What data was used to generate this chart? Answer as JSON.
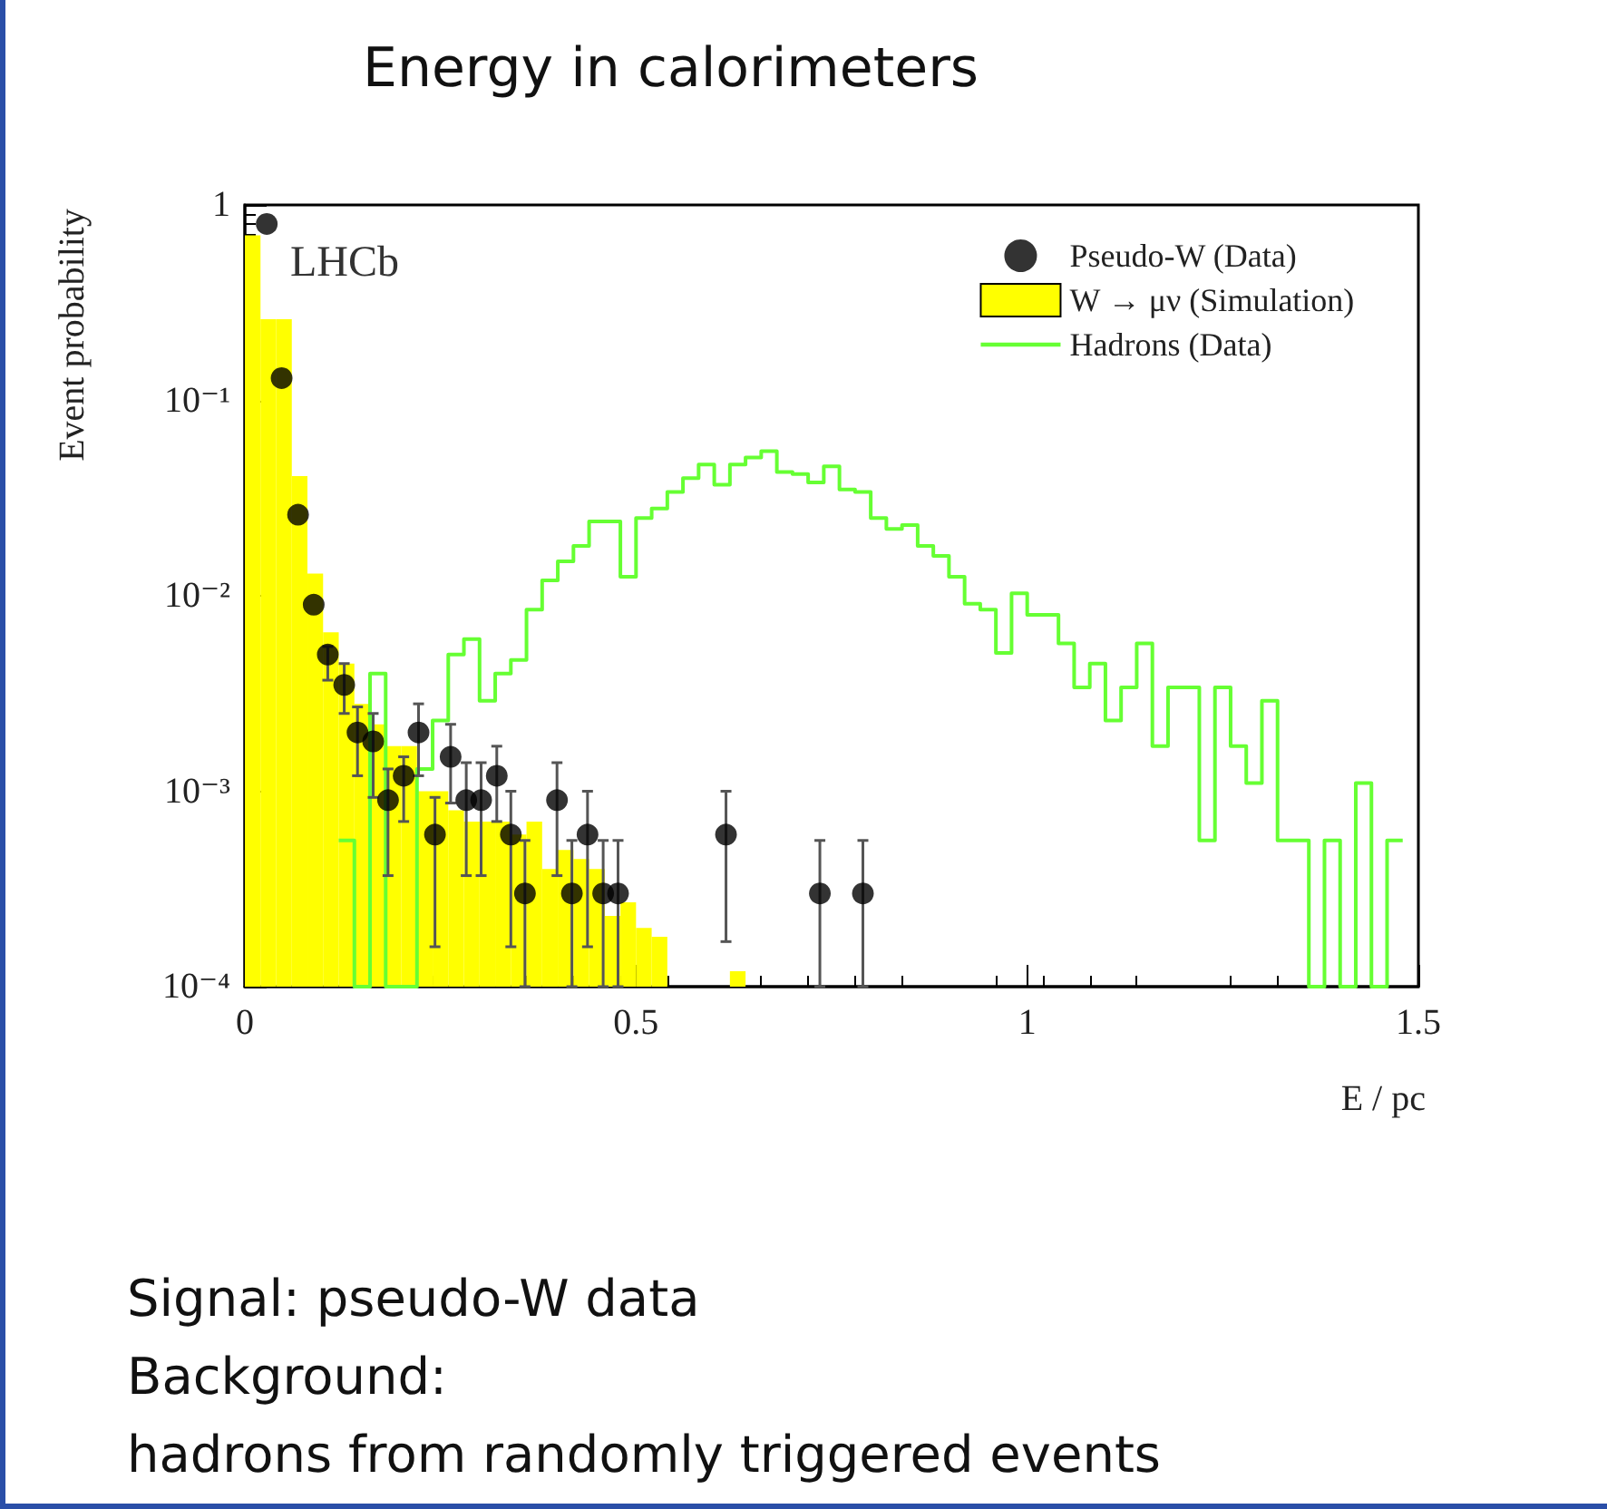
{
  "chart_data": {
    "type": "histogram",
    "title": "Energy in calorimeters",
    "xlabel": "E / pc",
    "ylabel": "Event probability",
    "annotations": [
      "LHCb",
      "Signal: pseudo-W data",
      "Background:",
      "hadrons from randomly triggered events"
    ],
    "bins": [
      0,
      0.02,
      0.04,
      0.06,
      0.08,
      0.1,
      0.12,
      0.14,
      0.16,
      0.18,
      0.2,
      0.22,
      0.24,
      0.26,
      0.28,
      0.3,
      0.32,
      0.34,
      0.36,
      0.38,
      0.4,
      0.42,
      0.44,
      0.46,
      0.48,
      0.5,
      0.52,
      0.54,
      0.56,
      0.58,
      0.6,
      0.62,
      0.64,
      0.66,
      0.68,
      0.7,
      0.72,
      0.74,
      0.76,
      0.78,
      0.8,
      0.82,
      0.84,
      0.86,
      0.88,
      0.9,
      0.92,
      0.94,
      0.96,
      0.98,
      1,
      1.02,
      1.04,
      1.06,
      1.08,
      1.1,
      1.12,
      1.14,
      1.16,
      1.18,
      1.2,
      1.22,
      1.24,
      1.26,
      1.28,
      1.3,
      1.32,
      1.34,
      1.36,
      1.38,
      1.4,
      1.42,
      1.44,
      1.46,
      1.48,
      1.5
    ],
    "series": [
      {
        "name": "Pseudo-W (Data)",
        "type": "scatter",
        "marker": "circle",
        "color": "#000000",
        "x": [
          0.028,
          0.047,
          0.068,
          0.088,
          0.106,
          0.127,
          0.144,
          0.164,
          0.183,
          0.203,
          0.222,
          0.243,
          0.263,
          0.283,
          0.302,
          0.322,
          0.34,
          0.358,
          0.399,
          0.418,
          0.438,
          0.458,
          0.477,
          0.615,
          0.735,
          0.79
        ],
        "values": [
          0.8,
          0.13,
          0.026,
          0.009,
          0.005,
          0.0035,
          0.002,
          0.0018,
          0.0009,
          0.0012,
          0.002,
          0.0006,
          0.0015,
          0.0009,
          0.0009,
          0.0012,
          0.0006,
          0.0003,
          0.0009,
          0.0003,
          0.0006,
          0.0003,
          0.0003,
          0.0006,
          0.0003,
          0.0003
        ],
        "errors": [
          null,
          null,
          null,
          null,
          [
            0.0037,
            0.0055
          ],
          [
            0.0025,
            0.0045
          ],
          [
            0.0012,
            0.0027
          ],
          [
            0.00093,
            0.0025
          ],
          [
            0.00037,
            0.0013
          ],
          [
            0.0007,
            0.0015
          ],
          [
            0.0012,
            0.0028
          ],
          [
            0.00016,
            0.00093
          ],
          [
            0.00087,
            0.0022
          ],
          [
            0.00037,
            0.0014
          ],
          [
            0.00037,
            0.0014
          ],
          [
            0.0007,
            0.0017
          ],
          [
            0.00016,
            0.001
          ],
          [
            0.0001,
            0.00056
          ],
          [
            0.00037,
            0.0014
          ],
          [
            0.0001,
            0.00056
          ],
          [
            0.00016,
            0.001
          ],
          [
            0.0001,
            0.00056
          ],
          [
            0.0001,
            0.00056
          ],
          [
            0.00017,
            0.001
          ],
          [
            0.0001,
            0.00056
          ],
          [
            0.0001,
            0.00056
          ]
        ]
      },
      {
        "name": "W → μν (Simulation)",
        "type": "histogram",
        "color": "#ffff00",
        "values": [
          0.7,
          0.26,
          0.26,
          0.041,
          0.013,
          0.0065,
          0.0045,
          0.0028,
          0.0022,
          0.0017,
          0.0017,
          0.001,
          0.001,
          0.0008,
          0.0007,
          0.0007,
          0.0007,
          0.0006,
          0.0007,
          0.0004,
          0.0005,
          0.00045,
          0.0004,
          0.00023,
          0.00027,
          0.0002,
          0.00018,
          null,
          null,
          null,
          null,
          0.00012,
          null,
          null,
          null,
          null,
          null,
          null,
          null,
          null,
          null,
          null,
          null,
          null,
          null,
          null,
          null,
          null,
          null,
          null,
          null,
          null,
          null,
          null,
          null,
          null,
          null,
          null,
          null,
          null,
          null,
          null,
          null,
          null,
          null,
          null,
          null,
          null,
          null,
          null,
          null,
          null,
          null,
          null,
          null
        ]
      },
      {
        "name": "Hadrons (Data)",
        "type": "step",
        "marker": "none",
        "color": "#66ff33",
        "x": [
          0.12,
          0.14,
          0.16,
          0.18,
          0.2,
          0.22,
          0.24,
          0.26,
          0.28,
          0.3,
          0.32,
          0.34,
          0.36,
          0.38,
          0.4,
          0.42,
          0.44,
          0.46,
          0.48,
          0.5,
          0.52,
          0.54,
          0.56,
          0.58,
          0.6,
          0.62,
          0.64,
          0.66,
          0.68,
          0.7,
          0.72,
          0.74,
          0.76,
          0.78,
          0.8,
          0.82,
          0.84,
          0.86,
          0.88,
          0.9,
          0.92,
          0.94,
          0.96,
          0.98,
          1,
          1.02,
          1.04,
          1.06,
          1.08,
          1.1,
          1.12,
          1.14,
          1.16,
          1.18,
          1.2,
          1.22,
          1.24,
          1.26,
          1.28,
          1.3,
          1.32,
          1.34,
          1.36,
          1.38,
          1.4,
          1.42,
          1.44,
          1.46,
          1.48
        ],
        "values": [
          0.00056,
          0.0001,
          0.004,
          0.0001,
          0.0001,
          0.0013,
          0.0023,
          0.005,
          0.006,
          0.0029,
          0.004,
          0.0047,
          0.0085,
          0.012,
          0.015,
          0.018,
          0.024,
          0.024,
          0.0125,
          0.025,
          0.028,
          0.034,
          0.04,
          0.047,
          0.037,
          0.047,
          0.051,
          0.055,
          0.043,
          0.042,
          0.038,
          0.046,
          0.035,
          0.034,
          0.025,
          0.022,
          0.023,
          0.018,
          0.016,
          0.0125,
          0.0091,
          0.0085,
          0.0051,
          0.0103,
          0.008,
          0.008,
          0.0057,
          0.0034,
          0.0045,
          0.0023,
          0.0034,
          0.0057,
          0.0017,
          0.0034,
          0.0034,
          0.00056,
          0.0034,
          0.0017,
          0.0011,
          0.0029,
          0.00056,
          0.00056,
          0.0001,
          0.00056,
          0.0001,
          0.0011,
          0.0001,
          0.00056,
          0.00056
        ]
      }
    ],
    "xlim": [
      0,
      1.5
    ],
    "xticks": [
      0,
      0.5,
      1,
      1.5
    ],
    "ylim": [
      0.0001,
      1
    ],
    "yticks": [
      {
        "value": 0.0001,
        "label": "10⁻⁴"
      },
      {
        "value": 0.001,
        "label": "10⁻³"
      },
      {
        "value": 0.01,
        "label": "10⁻²"
      },
      {
        "value": 0.1,
        "label": "10⁻¹"
      },
      1
    ],
    "log": "y",
    "grid": false,
    "legend": "top right"
  }
}
